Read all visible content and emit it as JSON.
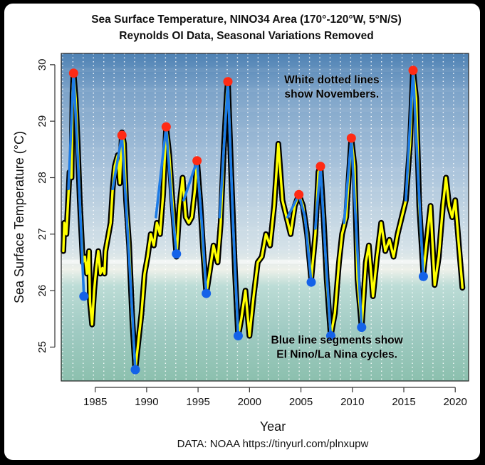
{
  "chart_data": {
    "type": "line",
    "title": "Sea Surface Temperature, NINO34 Area (170°-120°W, 5°N/S)",
    "subtitle": "Reynolds OI Data, Seasonal Variations Removed",
    "xlabel": "Year",
    "ylabel": "Sea Surface Temperature (°C)",
    "source": "DATA: NOAA https://tinyurl.com/plnxupw",
    "xlim": [
      1981.7,
      2021.3
    ],
    "ylim": [
      24.4,
      30.2
    ],
    "xticks": [
      1985,
      1990,
      1995,
      2000,
      2005,
      2010,
      2015,
      2020
    ],
    "yticks": [
      25,
      26,
      27,
      28,
      29,
      30
    ],
    "grid": "white dotted vertical lines at each November",
    "annotations": [
      {
        "text_lines": [
          "White dotted lines",
          "show Novembers."
        ],
        "x": 2008.0,
        "y": 29.67
      },
      {
        "text_lines": [
          "Blue line segments show",
          "El Nino/La Nina cycles."
        ],
        "x": 2008.5,
        "y": 25.06
      }
    ],
    "series": [
      {
        "line_color": "#ffff00",
        "points": [
          [
            1981.9,
            26.7
          ],
          [
            1982.0,
            27.2
          ],
          [
            1982.2,
            27.0
          ],
          [
            1982.4,
            27.7
          ],
          [
            1982.5,
            28.1
          ],
          [
            1982.7,
            28.0
          ],
          [
            1982.8,
            29.5
          ],
          [
            1982.9,
            29.85
          ],
          [
            1983.1,
            29.4
          ],
          [
            1983.3,
            28.6
          ],
          [
            1983.5,
            27.6
          ],
          [
            1983.8,
            26.5
          ],
          [
            1984.0,
            26.6
          ],
          [
            1984.2,
            26.3
          ],
          [
            1984.4,
            26.7
          ],
          [
            1984.5,
            25.8
          ],
          [
            1984.7,
            25.4
          ],
          [
            1984.9,
            26.0
          ],
          [
            1985.1,
            26.4
          ],
          [
            1985.3,
            26.7
          ],
          [
            1985.5,
            26.3
          ],
          [
            1985.7,
            26.4
          ],
          [
            1985.9,
            26.3
          ],
          [
            1986.0,
            26.7
          ],
          [
            1986.3,
            27.0
          ],
          [
            1986.5,
            27.2
          ],
          [
            1986.7,
            27.8
          ],
          [
            1986.9,
            28.2
          ],
          [
            1987.2,
            28.4
          ],
          [
            1987.4,
            27.9
          ],
          [
            1987.6,
            28.8
          ],
          [
            1987.8,
            28.6
          ],
          [
            1988.0,
            27.6
          ],
          [
            1988.3,
            26.8
          ],
          [
            1988.6,
            25.5
          ],
          [
            1988.9,
            24.6
          ],
          [
            1989.2,
            25.1
          ],
          [
            1989.5,
            25.6
          ],
          [
            1989.8,
            26.3
          ],
          [
            1990.1,
            26.6
          ],
          [
            1990.4,
            27.0
          ],
          [
            1990.7,
            26.8
          ],
          [
            1991.0,
            27.2
          ],
          [
            1991.3,
            27.0
          ],
          [
            1991.6,
            27.7
          ],
          [
            1991.9,
            28.9
          ],
          [
            1992.2,
            28.4
          ],
          [
            1992.5,
            27.6
          ],
          [
            1992.9,
            26.6
          ],
          [
            1993.2,
            27.5
          ],
          [
            1993.5,
            28.0
          ],
          [
            1993.8,
            27.3
          ],
          [
            1994.1,
            27.2
          ],
          [
            1994.4,
            27.3
          ],
          [
            1994.7,
            27.8
          ],
          [
            1994.9,
            28.3
          ],
          [
            1995.2,
            27.6
          ],
          [
            1995.5,
            26.7
          ],
          [
            1995.8,
            25.95
          ],
          [
            1996.1,
            26.3
          ],
          [
            1996.5,
            26.8
          ],
          [
            1996.9,
            26.5
          ],
          [
            1997.2,
            27.2
          ],
          [
            1997.5,
            28.5
          ],
          [
            1997.8,
            29.5
          ],
          [
            1997.9,
            29.7
          ],
          [
            1998.2,
            28.2
          ],
          [
            1998.6,
            26.3
          ],
          [
            1998.9,
            25.2
          ],
          [
            1999.2,
            25.5
          ],
          [
            1999.6,
            26.0
          ],
          [
            2000.0,
            25.2
          ],
          [
            2000.4,
            25.9
          ],
          [
            2000.8,
            26.5
          ],
          [
            2001.2,
            26.6
          ],
          [
            2001.6,
            27.0
          ],
          [
            2002.0,
            26.8
          ],
          [
            2002.4,
            27.5
          ],
          [
            2002.8,
            28.6
          ],
          [
            2003.2,
            27.6
          ],
          [
            2003.6,
            27.3
          ],
          [
            2004.0,
            27.0
          ],
          [
            2004.4,
            27.5
          ],
          [
            2004.8,
            27.7
          ],
          [
            2005.2,
            27.5
          ],
          [
            2005.6,
            27.0
          ],
          [
            2006.0,
            26.2
          ],
          [
            2006.4,
            27.0
          ],
          [
            2006.7,
            28.1
          ],
          [
            2006.9,
            28.2
          ],
          [
            2007.2,
            27.3
          ],
          [
            2007.5,
            26.2
          ],
          [
            2007.9,
            25.2
          ],
          [
            2008.3,
            25.6
          ],
          [
            2008.7,
            26.5
          ],
          [
            2009.0,
            27.0
          ],
          [
            2009.4,
            27.3
          ],
          [
            2009.9,
            28.7
          ],
          [
            2010.2,
            28.2
          ],
          [
            2010.5,
            26.2
          ],
          [
            2010.9,
            25.35
          ],
          [
            2011.3,
            26.5
          ],
          [
            2011.6,
            26.8
          ],
          [
            2012.0,
            25.9
          ],
          [
            2012.4,
            26.6
          ],
          [
            2012.8,
            27.2
          ],
          [
            2013.2,
            26.7
          ],
          [
            2013.6,
            26.9
          ],
          [
            2014.0,
            26.6
          ],
          [
            2014.4,
            27.0
          ],
          [
            2014.8,
            27.3
          ],
          [
            2015.2,
            27.6
          ],
          [
            2015.6,
            28.6
          ],
          [
            2015.9,
            29.9
          ],
          [
            2016.2,
            29.4
          ],
          [
            2016.5,
            27.5
          ],
          [
            2016.9,
            26.3
          ],
          [
            2017.3,
            27.0
          ],
          [
            2017.6,
            27.5
          ],
          [
            2018.0,
            26.1
          ],
          [
            2018.4,
            26.6
          ],
          [
            2018.8,
            27.5
          ],
          [
            2019.1,
            28.0
          ],
          [
            2019.4,
            27.5
          ],
          [
            2019.7,
            27.3
          ],
          [
            2020.0,
            27.6
          ],
          [
            2020.4,
            26.7
          ],
          [
            2020.7,
            26.05
          ]
        ]
      }
    ],
    "cycle_segments": [
      [
        [
          1982.4,
          27.8
        ],
        [
          1982.9,
          29.85
        ],
        [
          1983.4,
          28.0
        ],
        [
          1983.9,
          25.9
        ]
      ],
      [
        [
          1986.7,
          27.8
        ],
        [
          1987.6,
          28.75
        ],
        [
          1988.3,
          26.6
        ],
        [
          1988.9,
          24.6
        ]
      ],
      [
        [
          1990.9,
          27.3
        ],
        [
          1991.9,
          28.9
        ],
        [
          1992.5,
          27.4
        ],
        [
          1992.9,
          26.65
        ]
      ],
      [
        [
          1993.6,
          27.6
        ],
        [
          1994.9,
          28.3
        ],
        [
          1995.4,
          27.1
        ],
        [
          1995.8,
          25.95
        ]
      ],
      [
        [
          1997.1,
          27.3
        ],
        [
          1997.9,
          29.7
        ],
        [
          1998.4,
          27.2
        ],
        [
          1998.9,
          25.2
        ]
      ],
      [
        [
          2003.7,
          27.3
        ],
        [
          2004.8,
          27.7
        ],
        [
          2005.4,
          27.3
        ],
        [
          2006.0,
          26.15
        ]
      ],
      [
        [
          2006.4,
          27.1
        ],
        [
          2006.9,
          28.2
        ],
        [
          2007.4,
          26.6
        ],
        [
          2007.9,
          25.2
        ]
      ],
      [
        [
          2009.2,
          27.2
        ],
        [
          2009.9,
          28.7
        ],
        [
          2010.4,
          27.0
        ],
        [
          2010.9,
          25.35
        ]
      ],
      [
        [
          2015.2,
          27.6
        ],
        [
          2015.9,
          29.9
        ],
        [
          2016.4,
          28.0
        ],
        [
          2016.9,
          26.25
        ]
      ]
    ],
    "peaks": [
      [
        1982.9,
        29.85
      ],
      [
        1987.6,
        28.75
      ],
      [
        1991.9,
        28.9
      ],
      [
        1994.9,
        28.3
      ],
      [
        1997.9,
        29.7
      ],
      [
        2004.8,
        27.7
      ],
      [
        2006.9,
        28.2
      ],
      [
        2009.9,
        28.7
      ],
      [
        2015.9,
        29.9
      ]
    ],
    "troughs": [
      [
        1983.9,
        25.9
      ],
      [
        1988.9,
        24.6
      ],
      [
        1992.9,
        26.65
      ],
      [
        1995.8,
        25.95
      ],
      [
        1998.9,
        25.2
      ],
      [
        2006.0,
        26.15
      ],
      [
        2007.9,
        25.2
      ],
      [
        2010.9,
        25.35
      ],
      [
        2016.9,
        26.25
      ]
    ],
    "colors": {
      "line_fill": "#ffff00",
      "line_outline": "#000000",
      "cycle_fill": "#1e7ce6",
      "peak_marker": "#ff2a14",
      "trough_marker": "#1462e8",
      "november_lines": "#ffffff"
    }
  }
}
